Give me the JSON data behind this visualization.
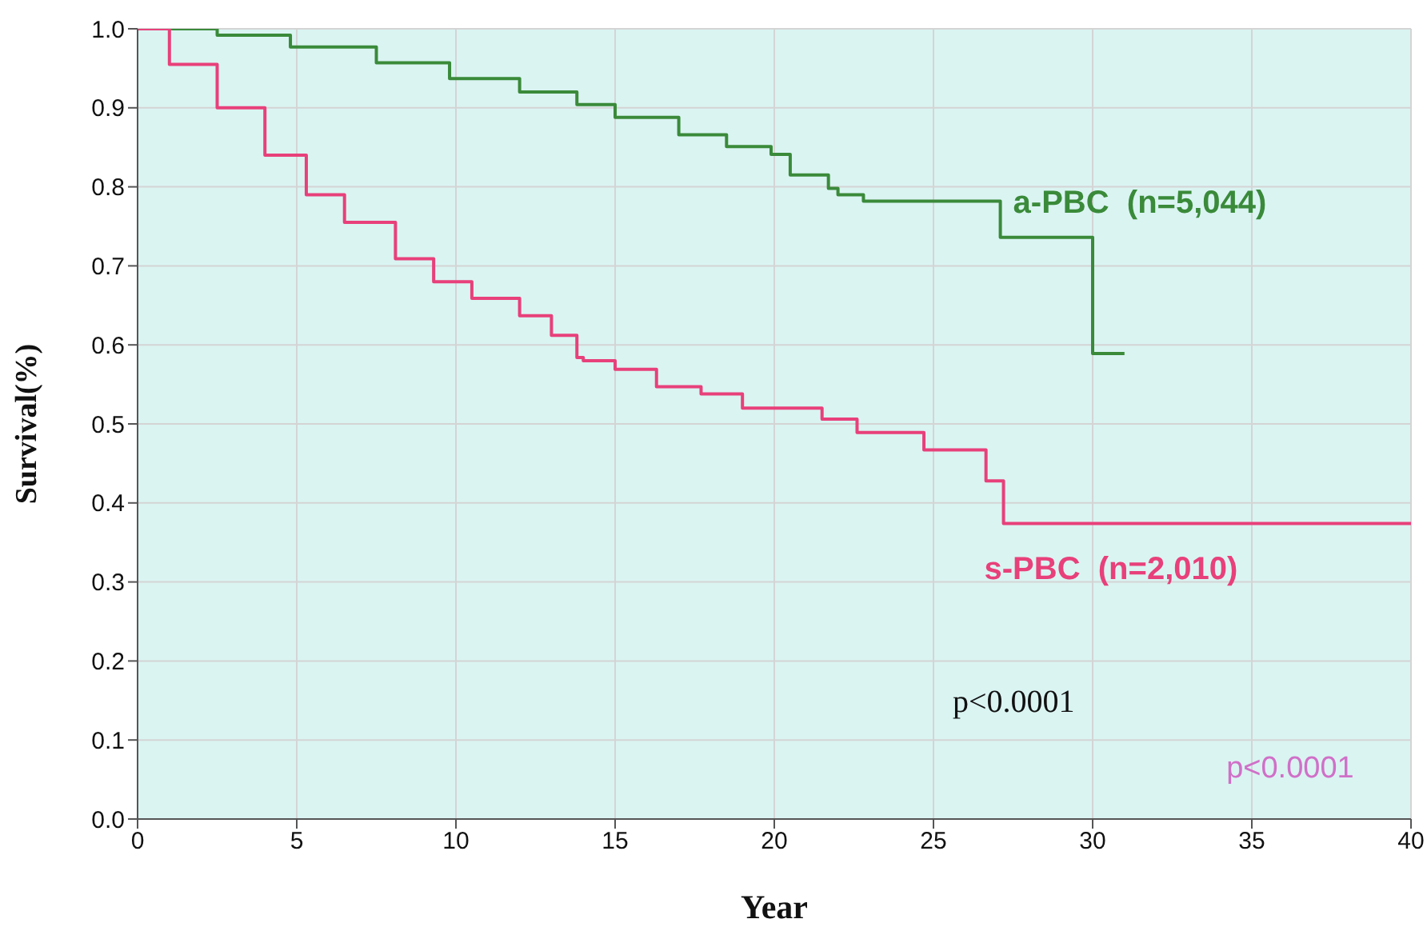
{
  "chart_data": {
    "type": "step",
    "xlabel": "Year",
    "ylabel": "Survival(%)",
    "xlim": [
      0,
      40
    ],
    "xticks": [
      0,
      5,
      10,
      15,
      20,
      25,
      30,
      35,
      40
    ],
    "ylim": [
      0,
      1
    ],
    "yticks": [
      {
        "value": 0,
        "label": "0.0"
      },
      0.1,
      0.2,
      0.3,
      0.4,
      0.5,
      0.6,
      0.7,
      0.8,
      0.9,
      {
        "value": 1,
        "label": "1.0"
      }
    ],
    "grid": true,
    "legend": false,
    "marker": "none",
    "line_style": "solid",
    "series": [
      {
        "name": "a-PBC  (n=5,044)",
        "color": "#3a8a3a",
        "x": [
          0,
          2.5,
          4.8,
          7.5,
          9.8,
          12,
          13.8,
          15,
          17,
          18.5,
          19.9,
          20.5,
          21.7,
          22,
          22.8,
          27.1,
          30,
          31
        ],
        "values": [
          1,
          0.992,
          0.977,
          0.957,
          0.937,
          0.92,
          0.904,
          0.888,
          0.866,
          0.851,
          0.841,
          0.815,
          0.798,
          0.79,
          0.782,
          0.736,
          0.589,
          0.589
        ]
      },
      {
        "name": "s-PBC  (n=2,010)",
        "color": "#e8407a",
        "x": [
          0,
          1,
          2.5,
          4,
          5.3,
          6.5,
          8.1,
          9.3,
          10.5,
          12,
          13,
          13.8,
          14,
          15,
          16.3,
          17.7,
          19,
          21.5,
          22.6,
          24.7,
          26.65,
          27.2,
          40
        ],
        "values": [
          1,
          0.955,
          0.9,
          0.84,
          0.79,
          0.755,
          0.709,
          0.68,
          0.659,
          0.637,
          0.612,
          0.584,
          0.58,
          0.569,
          0.547,
          0.538,
          0.52,
          0.506,
          0.489,
          0.467,
          0.428,
          0.374,
          0.374
        ]
      }
    ],
    "annotations": [
      "p<0.0001",
      "p<0.0001"
    ]
  }
}
